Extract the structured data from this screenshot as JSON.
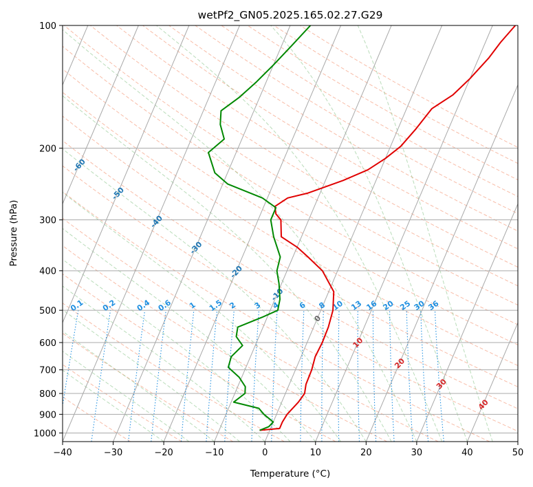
{
  "chart_data": {
    "type": "line",
    "title": "wetPf2_GN05.2025.165.02.27.G29",
    "xlabel": "Temperature (°C)",
    "ylabel": "Pressure (hPa)",
    "xlim": [
      -40,
      50
    ],
    "ylim": [
      1050,
      100
    ],
    "y_scale": "log",
    "x_ticks": [
      "−40",
      "−30",
      "−20",
      "−10",
      "0",
      "10",
      "20",
      "30",
      "40",
      "50"
    ],
    "y_ticks": [
      1000,
      900,
      800,
      700,
      600,
      500,
      400,
      300,
      200,
      100
    ],
    "grid": true,
    "skew": 35,
    "series": [
      {
        "name": "",
        "color": "#e00000",
        "points": [
          [
            -2.0,
            985
          ],
          [
            1.8,
            975
          ],
          [
            1.8,
            940
          ],
          [
            2.1,
            900
          ],
          [
            3.3,
            840
          ],
          [
            3.8,
            800
          ],
          [
            3.3,
            760
          ],
          [
            3.2,
            700
          ],
          [
            2.8,
            650
          ],
          [
            3.0,
            600
          ],
          [
            2.9,
            550
          ],
          [
            2.4,
            500
          ],
          [
            1.0,
            450
          ],
          [
            -3.0,
            400
          ],
          [
            -7.0,
            370
          ],
          [
            -10.0,
            350
          ],
          [
            -14.0,
            330
          ],
          [
            -15.5,
            300
          ],
          [
            -17.0,
            290
          ],
          [
            -17.8,
            278
          ],
          [
            -16.0,
            265
          ],
          [
            -12.5,
            258
          ],
          [
            -6.5,
            240
          ],
          [
            -2.5,
            226
          ],
          [
            0.0,
            212
          ],
          [
            2.0,
            198
          ],
          [
            3.5,
            180
          ],
          [
            5.0,
            160
          ],
          [
            8.0,
            148
          ],
          [
            10.0,
            135
          ],
          [
            12.0,
            120
          ],
          [
            13.0,
            110
          ],
          [
            14.5,
            100
          ]
        ]
      },
      {
        "name": "",
        "color": "#008800",
        "points": [
          [
            -2.0,
            985
          ],
          [
            -0.5,
            965
          ],
          [
            0.0,
            940
          ],
          [
            -2.5,
            900
          ],
          [
            -4.0,
            870
          ],
          [
            -9.5,
            840
          ],
          [
            -8.0,
            800
          ],
          [
            -8.5,
            770
          ],
          [
            -10.5,
            730
          ],
          [
            -13.5,
            690
          ],
          [
            -13.8,
            650
          ],
          [
            -12.5,
            610
          ],
          [
            -14.5,
            580
          ],
          [
            -15.0,
            550
          ],
          [
            -11.0,
            520
          ],
          [
            -8.5,
            500
          ],
          [
            -9.0,
            470
          ],
          [
            -10.5,
            430
          ],
          [
            -12.0,
            400
          ],
          [
            -12.5,
            370
          ],
          [
            -15.5,
            330
          ],
          [
            -17.5,
            300
          ],
          [
            -17.5,
            280
          ],
          [
            -21.0,
            265
          ],
          [
            -29.0,
            245
          ],
          [
            -32.5,
            230
          ],
          [
            -35.5,
            205
          ],
          [
            -33.5,
            190
          ],
          [
            -35.5,
            175
          ],
          [
            -36.5,
            162
          ],
          [
            -34.0,
            150
          ],
          [
            -32.0,
            138
          ],
          [
            -30.0,
            125
          ],
          [
            -28.0,
            112
          ],
          [
            -26.0,
            100
          ]
        ]
      }
    ],
    "isotherms": [
      -100,
      -90,
      -80,
      -70,
      -60,
      -50,
      -40,
      -30,
      -20,
      -10,
      0,
      10,
      20,
      30,
      40
    ],
    "mixing_ratio": [
      0.1,
      0.2,
      0.4,
      0.6,
      1,
      1.5,
      2,
      3,
      4,
      6,
      8,
      10,
      13,
      16,
      20,
      25,
      30,
      36
    ],
    "isotherm_label_colors": {
      "cold": "#1f77b4",
      "zero": "#666666",
      "warm": "#d62728"
    },
    "mixing_ratio_color": "#1f8fe0"
  }
}
